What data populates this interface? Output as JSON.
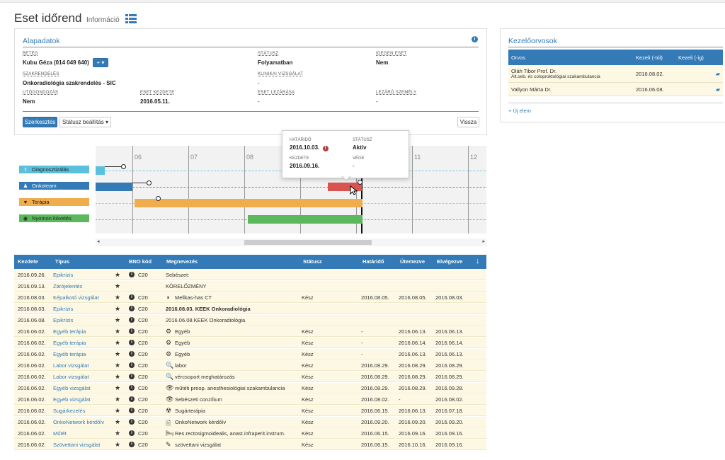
{
  "page": {
    "title": "Eset időrend",
    "subtitle": "Információ",
    "list_icon": "list-icon"
  },
  "alap": {
    "title": "Alapadatok",
    "info_icon": "info-icon",
    "fields": {
      "beteg_label": "Beteg",
      "beteg_value": "Kubu Géza (014 049 640)",
      "statusz_label": "Státusz",
      "statusz_value": "Folyamatban",
      "idegen_label": "Idegen eset",
      "idegen_value": "Nem",
      "szak_label": "Szakrendelés",
      "szak_value": "Onkoradiológia szakrendelés - SIC",
      "klin_label": "Klinikai vizsgálat",
      "klin_value": "-",
      "utorz_label": "Utógondozás",
      "utorz_value": "Nem",
      "kezdete_label": "Eset kezdete",
      "kezdete_value": "2016.05.11.",
      "lezaras_label": "Eset lezárása",
      "lezaras_value": "-",
      "lezaro_label": "Lezáró személy",
      "lezaro_value": "-"
    },
    "add_btn": "+ ▾",
    "edit_btn": "Szerkesztés",
    "status_btn": "Státusz beállítás ▾",
    "back_btn": "Vissza"
  },
  "kezelo": {
    "title": "Kezelőorvosok",
    "cols": [
      "Orvos",
      "Kezeli (-tól)",
      "Kezeli (-ig)"
    ],
    "rows": [
      {
        "name": "Oláh Tibor Prof. Dr.",
        "sub": "Ált.seb. és coloproktológiai szakambulancia",
        "from": "2016.08.02.",
        "to": ""
      },
      {
        "name": "Vallyon Márta Dr.",
        "sub": "",
        "from": "2016.06.08.",
        "to": ""
      }
    ],
    "new_item": "+ Új elem"
  },
  "timeline": {
    "months": [
      "06",
      "07",
      "08",
      "09",
      "10",
      "11",
      "12"
    ],
    "legend": [
      {
        "label": "Diagnosztizálás",
        "color": "#5bc0de",
        "icon": "stethoscope-icon",
        "glyph": "⚕"
      },
      {
        "label": "Onkoteam",
        "color": "#337ab7",
        "icon": "users-icon",
        "glyph": "👥"
      },
      {
        "label": "Terápia",
        "color": "#f0ad4e",
        "icon": "heartbeat-icon",
        "glyph": "♥"
      },
      {
        "label": "Nyomon követés",
        "color": "#5cb85c",
        "icon": "eye-icon",
        "glyph": "👁"
      }
    ],
    "tooltip": {
      "hatarido_label": "Határidő",
      "hatarido_value": "2016.10.03.",
      "statusz_label": "Státusz",
      "statusz_value": "Aktív",
      "kezdete_label": "Kezdete",
      "kezdete_value": "2016.09.16.",
      "vege_label": "Vége",
      "vege_value": "-"
    }
  },
  "events": {
    "headers": [
      "Kezdete",
      "Típus",
      "BNO kód",
      "Megnevezés",
      "Státusz",
      "Határidő",
      "Ütemezve",
      "Elvégezve"
    ],
    "sort_icon": "arrow-down-icon",
    "rows": [
      {
        "date": "2016.09.26.",
        "type": "Epikrízis",
        "bno": "C20",
        "icon": "",
        "name": "Sebészet:",
        "bold": false,
        "status": "",
        "deadline": "",
        "sched": "",
        "done": ""
      },
      {
        "date": "2016.09.13.",
        "type": "Zárójelentés",
        "bno": "",
        "icon": "",
        "name": "KÓRELŐZMÉNY",
        "bold": false,
        "status": "",
        "deadline": "",
        "sched": "",
        "done": ""
      },
      {
        "date": "2016.08.03.",
        "type": "Képalkotó vizsgálat",
        "bno": "C20",
        "icon": "◑",
        "name": "Mellkas-has CT",
        "bold": false,
        "status": "Kész",
        "deadline": "2016.08.05.",
        "sched": "2016.08.05.",
        "done": "2016.08.03."
      },
      {
        "date": "2016.08.03.",
        "type": "Epikrízis",
        "bno": "C20",
        "icon": "",
        "name": "2016.08.03. KEEK Onkoradiológia",
        "bold": true,
        "status": "",
        "deadline": "",
        "sched": "",
        "done": ""
      },
      {
        "date": "2016.06.08.",
        "type": "Epikrízis",
        "bno": "C20",
        "icon": "",
        "name": "2016.06.08.KEEK Onkoradiológia",
        "bold": false,
        "status": "",
        "deadline": "",
        "sched": "",
        "done": ""
      },
      {
        "date": "2016.06.02.",
        "type": "Egyéb terápia",
        "bno": "C20",
        "icon": "⚙",
        "name": "Egyéb",
        "bold": false,
        "status": "Kész",
        "deadline": "-",
        "sched": "2016.06.13.",
        "done": "2016.06.13."
      },
      {
        "date": "2016.06.02.",
        "type": "Egyéb terápia",
        "bno": "C20",
        "icon": "⚙",
        "name": "Egyéb",
        "bold": false,
        "status": "Kész",
        "deadline": "-",
        "sched": "2016.06.14.",
        "done": "2016.06.14."
      },
      {
        "date": "2016.06.02.",
        "type": "Egyéb terápia",
        "bno": "C20",
        "icon": "⚙",
        "name": "Egyéb",
        "bold": false,
        "status": "Kész",
        "deadline": "-",
        "sched": "2016.06.13.",
        "done": "2016.06.13."
      },
      {
        "date": "2016.06.02.",
        "type": "Labor vizsgálat",
        "bno": "C20",
        "icon": "🔍",
        "name": "labor",
        "bold": false,
        "status": "Kész",
        "deadline": "2016.08.29.",
        "sched": "2016.08.29.",
        "done": "2016.08.29."
      },
      {
        "date": "2016.06.02.",
        "type": "Labor vizsgálat",
        "bno": "C20",
        "icon": "🔍",
        "name": "vércsoport meghatározás",
        "bold": false,
        "status": "Kész",
        "deadline": "2016.08.29.",
        "sched": "2016.08.29.",
        "done": "2016.08.29."
      },
      {
        "date": "2016.06.02.",
        "type": "Egyéb vizsgálat",
        "bno": "C20",
        "icon": "👁",
        "name": "műtéti preop. anesthesiológiai szakambulancia",
        "bold": false,
        "status": "Kész",
        "deadline": "2016.08.29.",
        "sched": "2016.08.29.",
        "done": "2016.09.28."
      },
      {
        "date": "2016.06.02.",
        "type": "Egyéb vizsgálat",
        "bno": "C20",
        "icon": "👁",
        "name": "Sebészeti conzílium",
        "bold": false,
        "status": "Kész",
        "deadline": "2016.08.02.",
        "sched": "-",
        "done": "2016.08.02."
      },
      {
        "date": "2016.06.02.",
        "type": "Sugárkezelés",
        "bno": "C20",
        "icon": "☢",
        "name": "Sugárterápia",
        "bold": false,
        "status": "Kész",
        "deadline": "2016.06.15.",
        "sched": "2016.06.13.",
        "done": "2016.07.18."
      },
      {
        "date": "2016.06.02.",
        "type": "OnkoNetwork kérdőív",
        "bno": "C20",
        "icon": "🗎",
        "name": "OnkoNetwork kérdőív",
        "bold": false,
        "status": "Kész",
        "deadline": "2016.09.20.",
        "sched": "2016.09.20.",
        "done": "2016.09.20."
      },
      {
        "date": "2016.06.02.",
        "type": "Műtét",
        "bno": "C20",
        "icon": "🛏",
        "name": "Res.rectosigmoidealis, anast.infraperit.instrum.",
        "bold": false,
        "status": "Kész",
        "deadline": "2016.06.15.",
        "sched": "2016.09.16.",
        "done": "2016.09.16."
      },
      {
        "date": "2016.06.02.",
        "type": "Szövettani vizsgálat",
        "bno": "C20",
        "icon": "✎",
        "name": "szövettani vizsgálat",
        "bold": false,
        "status": "Kész",
        "deadline": "2016.06.15.",
        "sched": "2016.10.16.",
        "done": "2016.09.16."
      }
    ]
  }
}
